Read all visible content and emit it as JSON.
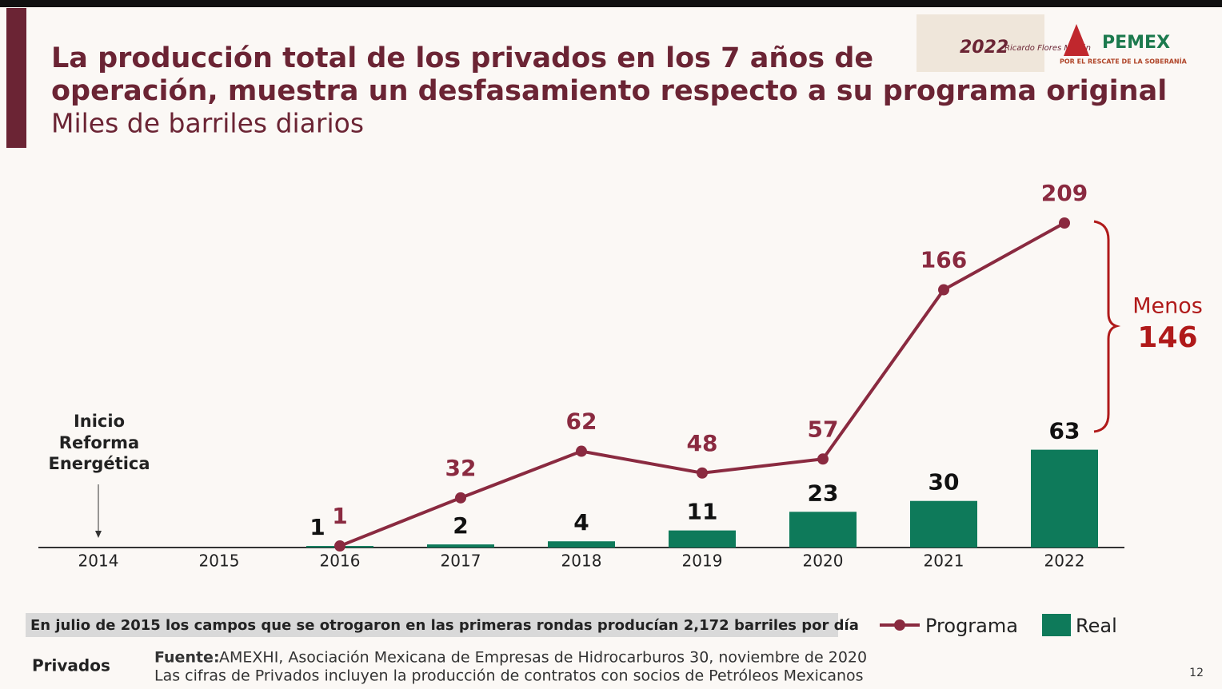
{
  "header": {
    "logo_year": "2022",
    "logo_name": "Ricardo Flores Magón",
    "brand": "PEMEX",
    "brand_slogan": "POR EL RESCATE DE LA SOBERANÍA"
  },
  "chart_data": {
    "type": "combo",
    "title": [
      "La producción total de los privados en los 7 años de",
      "operación, muestra un desfasamiento respecto a su programa original"
    ],
    "subtitle": "Miles de barriles diarios",
    "categories": [
      "2014",
      "2015",
      "2016",
      "2017",
      "2018",
      "2019",
      "2020",
      "2021",
      "2022"
    ],
    "series": [
      {
        "name": "Programa",
        "type": "line",
        "color": "#8a2a40",
        "values": [
          null,
          null,
          1,
          32,
          62,
          48,
          57,
          166,
          209
        ]
      },
      {
        "name": "Real",
        "type": "bar",
        "color": "#0e7a5a",
        "values": [
          null,
          null,
          1,
          2,
          4,
          11,
          23,
          30,
          63
        ]
      }
    ],
    "annotation_lines": [
      "Inicio",
      "Reforma",
      "Energética"
    ],
    "difference": {
      "label": "Menos",
      "value": 146
    },
    "note": "En julio de 2015 los campos que se otrogaron en las primeras rondas producían 2,172 barriles por día"
  },
  "footer": {
    "section": "Privados",
    "source_label": "Fuente:",
    "source": "AMEXHI, Asociación Mexicana de Empresas de Hidrocarburos 30, noviembre de 2020",
    "source_note": "Las cifras de Privados incluyen la producción de contratos con socios de Petróleos Mexicanos",
    "page": "12"
  }
}
